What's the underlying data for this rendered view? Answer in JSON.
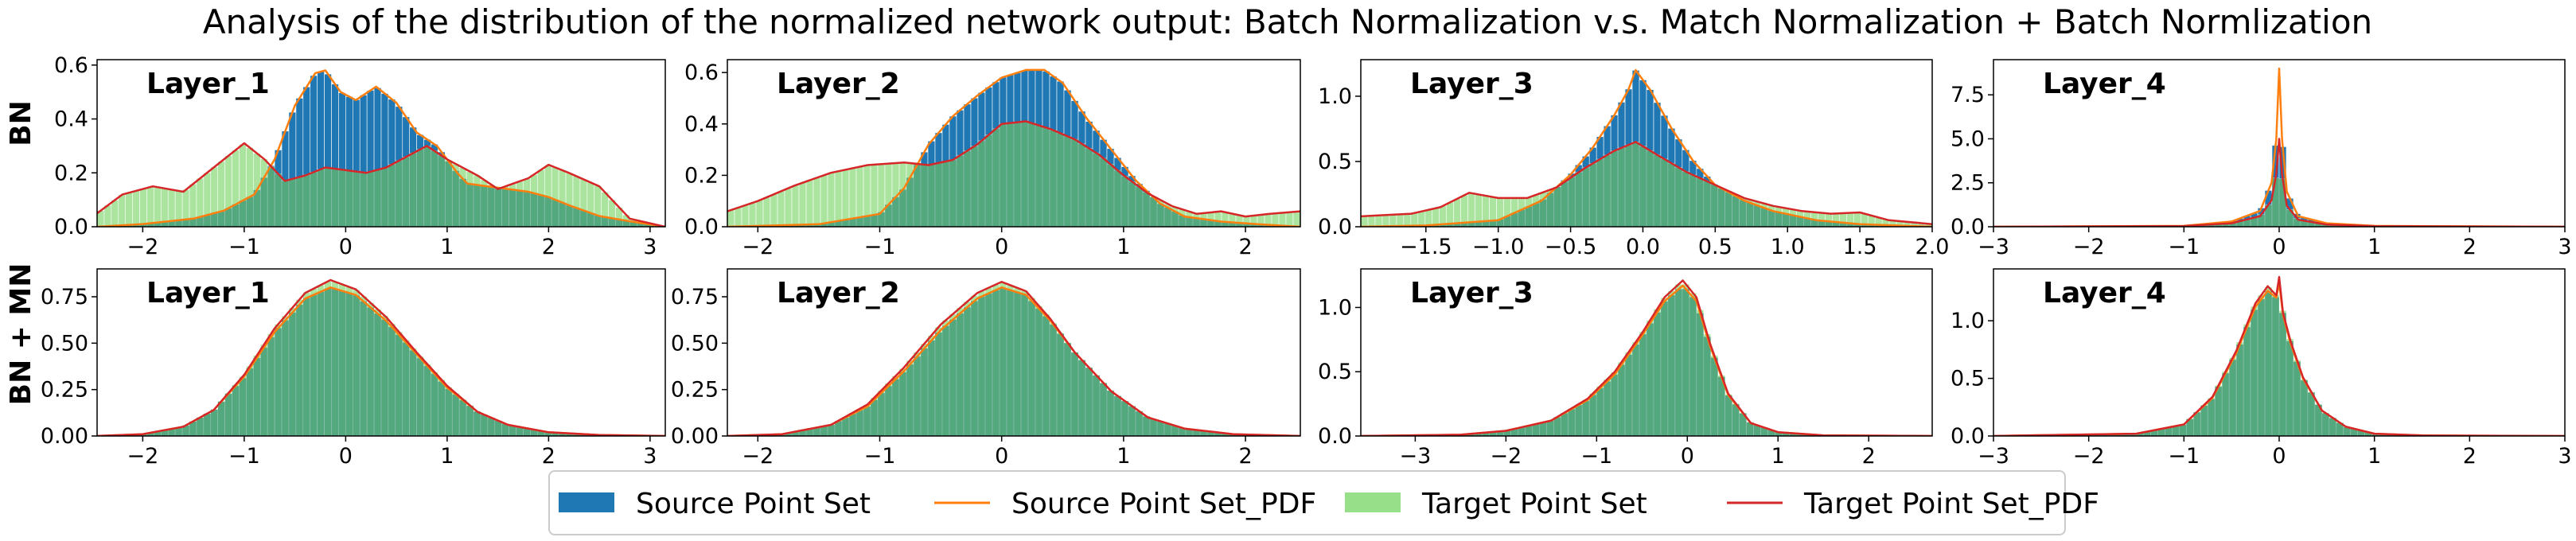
{
  "title": "Analysis of the distribution of the normalized network output: Batch Normalization v.s. Match Normalization + Batch Normlization",
  "rows": [
    "BN",
    "BN + MN"
  ],
  "legend": {
    "items": [
      {
        "label": "Source Point Set",
        "kind": "bar",
        "color": "#1f77b4"
      },
      {
        "label": "Source Point Set_PDF",
        "kind": "line",
        "color": "#ff7f0e"
      },
      {
        "label": "Target Point Set",
        "kind": "bar",
        "color": "#98df8a"
      },
      {
        "label": "Target Point Set_PDF",
        "kind": "line",
        "color": "#d62728"
      }
    ]
  },
  "colors": {
    "source_bar": "#1f77b4",
    "target_bar": "#98df8a",
    "source_pdf": "#ff7f0e",
    "target_pdf": "#d62728"
  },
  "chart_data": [
    {
      "type": "area",
      "row": "BN",
      "label": "Layer_1",
      "xlim": [
        -2.45,
        3.15
      ],
      "ylim": [
        0,
        0.62
      ],
      "xticks": [
        -2,
        -1,
        0,
        1,
        2,
        3
      ],
      "yticks": [
        0.0,
        0.2,
        0.4,
        0.6
      ],
      "xtick_labels": [
        "−2",
        "−1",
        "0",
        "1",
        "2",
        "3"
      ],
      "ytick_labels": [
        "0.0",
        "0.2",
        "0.4",
        "0.6"
      ],
      "source_pdf": {
        "x": [
          -2.45,
          -2.0,
          -1.5,
          -1.2,
          -0.9,
          -0.7,
          -0.5,
          -0.3,
          -0.2,
          -0.05,
          0.1,
          0.3,
          0.5,
          0.7,
          0.9,
          1.1,
          1.2,
          1.4,
          1.6,
          1.8,
          2.0,
          2.2,
          2.5,
          2.8,
          3.15
        ],
        "y": [
          0.0,
          0.01,
          0.03,
          0.06,
          0.12,
          0.25,
          0.45,
          0.57,
          0.58,
          0.5,
          0.47,
          0.52,
          0.46,
          0.35,
          0.3,
          0.2,
          0.16,
          0.15,
          0.14,
          0.13,
          0.11,
          0.08,
          0.04,
          0.02,
          0.0
        ]
      },
      "target_pdf": {
        "x": [
          -2.45,
          -2.2,
          -1.9,
          -1.6,
          -1.3,
          -1.0,
          -0.8,
          -0.6,
          -0.4,
          -0.2,
          0.0,
          0.2,
          0.4,
          0.6,
          0.8,
          1.0,
          1.3,
          1.5,
          1.8,
          2.0,
          2.2,
          2.5,
          2.8,
          3.15
        ],
        "y": [
          0.05,
          0.12,
          0.15,
          0.13,
          0.22,
          0.31,
          0.25,
          0.17,
          0.19,
          0.22,
          0.21,
          0.2,
          0.22,
          0.26,
          0.3,
          0.25,
          0.19,
          0.14,
          0.18,
          0.23,
          0.2,
          0.15,
          0.03,
          0.0
        ]
      }
    },
    {
      "type": "area",
      "row": "BN",
      "label": "Layer_2",
      "xlim": [
        -2.25,
        2.45
      ],
      "ylim": [
        0,
        0.65
      ],
      "xticks": [
        -2,
        -1,
        0,
        1,
        2
      ],
      "yticks": [
        0.0,
        0.2,
        0.4,
        0.6
      ],
      "xtick_labels": [
        "−2",
        "−1",
        "0",
        "1",
        "2"
      ],
      "ytick_labels": [
        "0.0",
        "0.2",
        "0.4",
        "0.6"
      ],
      "source_pdf": {
        "x": [
          -2.25,
          -1.5,
          -1.0,
          -0.8,
          -0.6,
          -0.4,
          -0.2,
          0.0,
          0.2,
          0.35,
          0.5,
          0.7,
          0.9,
          1.1,
          1.3,
          1.5,
          1.8,
          2.1,
          2.45
        ],
        "y": [
          0.0,
          0.01,
          0.05,
          0.15,
          0.32,
          0.43,
          0.51,
          0.58,
          0.61,
          0.61,
          0.56,
          0.42,
          0.3,
          0.18,
          0.09,
          0.04,
          0.02,
          0.01,
          0.0
        ]
      },
      "target_pdf": {
        "x": [
          -2.25,
          -2.0,
          -1.7,
          -1.4,
          -1.1,
          -0.8,
          -0.6,
          -0.4,
          -0.2,
          0.0,
          0.2,
          0.4,
          0.6,
          0.8,
          1.0,
          1.2,
          1.4,
          1.6,
          1.8,
          2.0,
          2.2,
          2.45
        ],
        "y": [
          0.06,
          0.1,
          0.16,
          0.21,
          0.24,
          0.25,
          0.24,
          0.26,
          0.32,
          0.4,
          0.41,
          0.38,
          0.34,
          0.28,
          0.2,
          0.13,
          0.08,
          0.05,
          0.06,
          0.04,
          0.05,
          0.06
        ]
      }
    },
    {
      "type": "area",
      "row": "BN",
      "label": "Layer_3",
      "xlim": [
        -1.95,
        2.0
      ],
      "ylim": [
        0,
        1.28
      ],
      "xticks": [
        -1.5,
        -1.0,
        -0.5,
        0.0,
        0.5,
        1.0,
        1.5,
        2.0
      ],
      "yticks": [
        0.0,
        0.5,
        1.0
      ],
      "xtick_labels": [
        "−1.5",
        "−1.0",
        "−0.5",
        "0.0",
        "0.5",
        "1.0",
        "1.5",
        "2.0"
      ],
      "ytick_labels": [
        "0.0",
        "0.5",
        "1.0"
      ],
      "source_pdf": {
        "x": [
          -1.95,
          -1.5,
          -1.0,
          -0.7,
          -0.5,
          -0.35,
          -0.2,
          -0.1,
          -0.05,
          0.05,
          0.2,
          0.35,
          0.5,
          0.7,
          0.9,
          1.2,
          1.5,
          2.0
        ],
        "y": [
          0.0,
          0.01,
          0.05,
          0.2,
          0.4,
          0.6,
          0.85,
          1.05,
          1.2,
          1.05,
          0.75,
          0.5,
          0.32,
          0.2,
          0.12,
          0.05,
          0.02,
          0.0
        ]
      },
      "target_pdf": {
        "x": [
          -1.95,
          -1.6,
          -1.4,
          -1.2,
          -1.0,
          -0.8,
          -0.6,
          -0.4,
          -0.2,
          -0.05,
          0.1,
          0.3,
          0.5,
          0.7,
          0.9,
          1.1,
          1.3,
          1.5,
          1.7,
          2.0
        ],
        "y": [
          0.08,
          0.1,
          0.15,
          0.26,
          0.22,
          0.22,
          0.3,
          0.45,
          0.58,
          0.65,
          0.55,
          0.42,
          0.32,
          0.22,
          0.16,
          0.12,
          0.1,
          0.11,
          0.05,
          0.02
        ]
      }
    },
    {
      "type": "area",
      "row": "BN",
      "label": "Layer_4",
      "xlim": [
        -3.0,
        3.0
      ],
      "ylim": [
        0,
        9.5
      ],
      "xticks": [
        -3,
        -2,
        -1,
        0,
        1,
        2,
        3
      ],
      "yticks": [
        0.0,
        2.5,
        5.0,
        7.5
      ],
      "xtick_labels": [
        "−3",
        "−2",
        "−1",
        "0",
        "1",
        "2",
        "3"
      ],
      "ytick_labels": [
        "0.0",
        "2.5",
        "5.0",
        "7.5"
      ],
      "source_pdf": {
        "x": [
          -3.0,
          -1.0,
          -0.5,
          -0.2,
          -0.08,
          -0.03,
          0.0,
          0.03,
          0.08,
          0.2,
          0.5,
          1.0,
          3.0
        ],
        "y": [
          0.0,
          0.05,
          0.3,
          0.9,
          2.5,
          5.0,
          9.0,
          5.0,
          2.0,
          0.6,
          0.2,
          0.05,
          0.0
        ]
      },
      "target_pdf": {
        "x": [
          -3.0,
          -1.0,
          -0.5,
          -0.2,
          -0.08,
          -0.03,
          0.0,
          0.03,
          0.08,
          0.2,
          0.5,
          1.0,
          3.0
        ],
        "y": [
          0.0,
          0.04,
          0.2,
          0.6,
          1.5,
          3.0,
          5.0,
          3.0,
          1.2,
          0.4,
          0.12,
          0.03,
          0.0
        ]
      }
    },
    {
      "type": "area",
      "row": "BN + MN",
      "label": "Layer_1",
      "xlim": [
        -2.45,
        3.15
      ],
      "ylim": [
        0,
        0.9
      ],
      "xticks": [
        -2,
        -1,
        0,
        1,
        2,
        3
      ],
      "yticks": [
        0.0,
        0.25,
        0.5,
        0.75
      ],
      "xtick_labels": [
        "−2",
        "−1",
        "0",
        "1",
        "2",
        "3"
      ],
      "ytick_labels": [
        "0.00",
        "0.25",
        "0.50",
        "0.75"
      ],
      "source_pdf": {
        "x": [
          -2.45,
          -2.0,
          -1.6,
          -1.3,
          -1.0,
          -0.7,
          -0.4,
          -0.15,
          0.1,
          0.4,
          0.7,
          1.0,
          1.3,
          1.6,
          2.0,
          2.5,
          3.15
        ],
        "y": [
          0.0,
          0.01,
          0.05,
          0.14,
          0.32,
          0.56,
          0.74,
          0.8,
          0.76,
          0.62,
          0.44,
          0.26,
          0.13,
          0.06,
          0.02,
          0.005,
          0.0
        ]
      },
      "target_pdf": {
        "x": [
          -2.45,
          -2.0,
          -1.6,
          -1.3,
          -1.0,
          -0.7,
          -0.4,
          -0.15,
          0.1,
          0.4,
          0.7,
          1.0,
          1.3,
          1.6,
          2.0,
          2.5,
          3.15
        ],
        "y": [
          0.0,
          0.01,
          0.05,
          0.14,
          0.33,
          0.58,
          0.77,
          0.84,
          0.79,
          0.64,
          0.45,
          0.27,
          0.13,
          0.06,
          0.02,
          0.005,
          0.0
        ]
      }
    },
    {
      "type": "area",
      "row": "BN + MN",
      "label": "Layer_2",
      "xlim": [
        -2.25,
        2.45
      ],
      "ylim": [
        0,
        0.9
      ],
      "xticks": [
        -2,
        -1,
        0,
        1,
        2
      ],
      "yticks": [
        0.0,
        0.25,
        0.5,
        0.75
      ],
      "xtick_labels": [
        "−2",
        "−1",
        "0",
        "1",
        "2"
      ],
      "ytick_labels": [
        "0.00",
        "0.25",
        "0.50",
        "0.75"
      ],
      "source_pdf": {
        "x": [
          -2.25,
          -1.8,
          -1.4,
          -1.1,
          -0.8,
          -0.5,
          -0.2,
          0.0,
          0.2,
          0.4,
          0.6,
          0.9,
          1.2,
          1.5,
          1.9,
          2.45
        ],
        "y": [
          0.0,
          0.01,
          0.06,
          0.16,
          0.35,
          0.57,
          0.74,
          0.8,
          0.76,
          0.62,
          0.45,
          0.24,
          0.1,
          0.04,
          0.01,
          0.0
        ]
      },
      "target_pdf": {
        "x": [
          -2.25,
          -1.8,
          -1.4,
          -1.1,
          -0.8,
          -0.5,
          -0.2,
          0.0,
          0.2,
          0.4,
          0.6,
          0.9,
          1.2,
          1.5,
          1.9,
          2.45
        ],
        "y": [
          0.0,
          0.01,
          0.06,
          0.17,
          0.37,
          0.6,
          0.77,
          0.83,
          0.78,
          0.63,
          0.45,
          0.24,
          0.1,
          0.04,
          0.01,
          0.0
        ]
      }
    },
    {
      "type": "area",
      "row": "BN + MN",
      "label": "Layer_3",
      "xlim": [
        -3.6,
        2.7
      ],
      "ylim": [
        0,
        1.3
      ],
      "xticks": [
        -3,
        -2,
        -1,
        0,
        1,
        2
      ],
      "yticks": [
        0.0,
        0.5,
        1.0
      ],
      "xtick_labels": [
        "−3",
        "−2",
        "−1",
        "0",
        "1",
        "2"
      ],
      "ytick_labels": [
        "0.0",
        "0.5",
        "1.0"
      ],
      "source_pdf": {
        "x": [
          -3.6,
          -2.5,
          -2.0,
          -1.5,
          -1.1,
          -0.8,
          -0.5,
          -0.25,
          -0.05,
          0.1,
          0.25,
          0.45,
          0.7,
          1.0,
          1.5,
          2.7
        ],
        "y": [
          0.0,
          0.01,
          0.04,
          0.12,
          0.28,
          0.48,
          0.78,
          1.05,
          1.17,
          1.05,
          0.7,
          0.32,
          0.1,
          0.03,
          0.005,
          0.0
        ]
      },
      "target_pdf": {
        "x": [
          -3.6,
          -2.5,
          -2.0,
          -1.5,
          -1.1,
          -0.8,
          -0.5,
          -0.25,
          -0.05,
          0.1,
          0.25,
          0.45,
          0.7,
          1.0,
          1.5,
          2.7
        ],
        "y": [
          0.0,
          0.01,
          0.04,
          0.12,
          0.29,
          0.5,
          0.8,
          1.08,
          1.21,
          1.08,
          0.72,
          0.33,
          0.1,
          0.03,
          0.005,
          0.0
        ]
      }
    },
    {
      "type": "area",
      "row": "BN + MN",
      "label": "Layer_4",
      "xlim": [
        -3.0,
        3.0
      ],
      "ylim": [
        0,
        1.45
      ],
      "xticks": [
        -3,
        -2,
        -1,
        0,
        1,
        2,
        3
      ],
      "yticks": [
        0.0,
        0.5,
        1.0
      ],
      "xtick_labels": [
        "−3",
        "−2",
        "−1",
        "0",
        "1",
        "2",
        "3"
      ],
      "ytick_labels": [
        "0.0",
        "0.5",
        "1.0"
      ],
      "source_pdf": {
        "x": [
          -3.0,
          -1.5,
          -1.0,
          -0.7,
          -0.45,
          -0.25,
          -0.12,
          -0.03,
          0.0,
          0.04,
          0.12,
          0.25,
          0.45,
          0.7,
          1.0,
          1.5,
          3.0
        ],
        "y": [
          0.0,
          0.02,
          0.1,
          0.33,
          0.72,
          1.12,
          1.26,
          1.2,
          1.33,
          1.05,
          0.8,
          0.5,
          0.22,
          0.08,
          0.02,
          0.005,
          0.0
        ]
      },
      "target_pdf": {
        "x": [
          -3.0,
          -1.5,
          -1.0,
          -0.7,
          -0.45,
          -0.25,
          -0.12,
          -0.03,
          0.0,
          0.04,
          0.12,
          0.25,
          0.45,
          0.7,
          1.0,
          1.5,
          3.0
        ],
        "y": [
          0.0,
          0.02,
          0.1,
          0.34,
          0.74,
          1.15,
          1.3,
          1.22,
          1.38,
          1.07,
          0.82,
          0.51,
          0.22,
          0.08,
          0.02,
          0.005,
          0.0
        ]
      }
    }
  ]
}
